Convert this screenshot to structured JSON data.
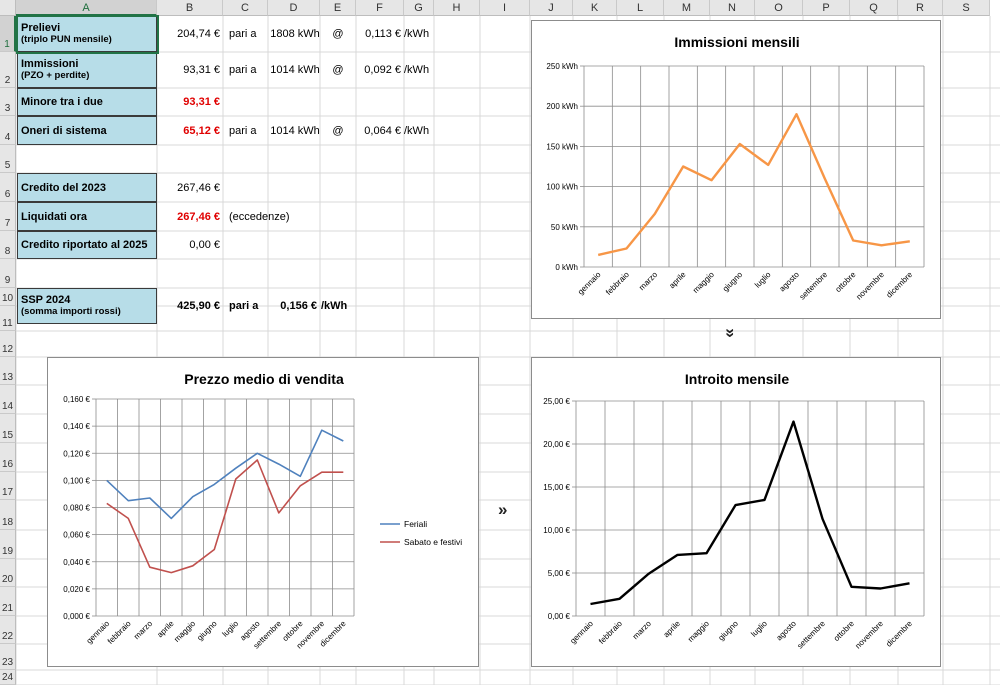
{
  "sheet": {
    "columns": [
      "A",
      "B",
      "C",
      "D",
      "E",
      "F",
      "G",
      "H",
      "I",
      "J",
      "K",
      "L",
      "M",
      "N",
      "O",
      "P",
      "Q",
      "R",
      "S"
    ],
    "rows": [
      "1",
      "2",
      "3",
      "4",
      "5",
      "6",
      "7",
      "8",
      "9",
      "10",
      "11",
      "12",
      "13",
      "14",
      "15",
      "16",
      "17",
      "18",
      "19",
      "20",
      "21",
      "22",
      "23",
      "24"
    ],
    "selected_cell": "A1"
  },
  "cells": {
    "prelievi": {
      "label": "Prelievi",
      "sub": "(triplo PUN mensile)",
      "amount": "204,74 €",
      "pari": "pari a",
      "kwh": "1808 kWh",
      "at": "@",
      "rate": "0,113 €",
      "unit": "/kWh"
    },
    "immissioni": {
      "label": "Immissioni",
      "sub": "(PZO + perdite)",
      "amount": "93,31 €",
      "pari": "pari a",
      "kwh": "1014 kWh",
      "at": "@",
      "rate": "0,092 €",
      "unit": "/kWh"
    },
    "minore": {
      "label": "Minore tra i due",
      "amount": "93,31 €"
    },
    "oneri": {
      "label": "Oneri di sistema",
      "amount": "65,12 €",
      "pari": "pari a",
      "kwh": "1014 kWh",
      "at": "@",
      "rate": "0,064 €",
      "unit": "/kWh"
    },
    "credito2023": {
      "label": "Credito del 2023",
      "amount": "267,46 €"
    },
    "liquidati": {
      "label": "Liquidati ora",
      "amount": "267,46 €",
      "note": "(eccedenze)"
    },
    "riportato": {
      "label": "Credito riportato al 2025",
      "amount": "0,00 €"
    },
    "ssp": {
      "label": "SSP 2024",
      "sub": "(somma importi rossi)",
      "amount": "425,90 €",
      "pari": "pari a",
      "rate": "0,156 €",
      "unit": "/kWh"
    }
  },
  "arrows": {
    "right": "»",
    "down": "»"
  },
  "colors": {
    "orange": "#f79646",
    "blue": "#4f81bd",
    "red": "#c0504d",
    "black": "#000000",
    "label_bg": "#b7dde8",
    "excel_green": "#217346"
  },
  "chart_data": [
    {
      "id": "immissioni-mensili",
      "type": "line",
      "title": "Immissioni mensili",
      "categories": [
        "gennaio",
        "febbraio",
        "marzo",
        "aprile",
        "maggio",
        "giugno",
        "luglio",
        "agosto",
        "settembre",
        "ottobre",
        "novembre",
        "dicembre"
      ],
      "series": [
        {
          "values": [
            15,
            23,
            66,
            125,
            108,
            153,
            127,
            190,
            110,
            33,
            27,
            32
          ],
          "color": "#f79646"
        }
      ],
      "ylim": [
        0,
        250
      ],
      "yticks": [
        "0 kWh",
        "50 kWh",
        "100 kWh",
        "150 kWh",
        "200 kWh",
        "250 kWh"
      ],
      "grid": true
    },
    {
      "id": "prezzo-medio",
      "type": "line",
      "title": "Prezzo medio di vendita",
      "categories": [
        "gennaio",
        "febbraio",
        "marzo",
        "aprile",
        "maggio",
        "giugno",
        "luglio",
        "agosto",
        "settembre",
        "ottobre",
        "novembre",
        "dicembre"
      ],
      "series": [
        {
          "name": "Feriali",
          "values": [
            0.1,
            0.085,
            0.087,
            0.072,
            0.088,
            0.097,
            0.109,
            0.12,
            0.112,
            0.103,
            0.137,
            0.129
          ],
          "color": "#4f81bd"
        },
        {
          "name": "Sabato e festivi",
          "values": [
            0.083,
            0.072,
            0.036,
            0.032,
            0.037,
            0.049,
            0.101,
            0.115,
            0.076,
            0.096,
            0.106,
            0.106
          ],
          "color": "#c0504d"
        }
      ],
      "ylim": [
        0,
        0.16
      ],
      "yticks": [
        "0,000 €",
        "0,020 €",
        "0,040 €",
        "0,060 €",
        "0,080 €",
        "0,100 €",
        "0,120 €",
        "0,140 €",
        "0,160 €"
      ],
      "grid": true,
      "legend": "right"
    },
    {
      "id": "introito-mensile",
      "type": "line",
      "title": "Introito mensile",
      "categories": [
        "gennaio",
        "febbraio",
        "marzo",
        "aprile",
        "maggio",
        "giugno",
        "luglio",
        "agosto",
        "settembre",
        "ottobre",
        "novembre",
        "dicembre"
      ],
      "series": [
        {
          "values": [
            1.4,
            2.0,
            4.9,
            7.1,
            7.3,
            12.9,
            13.5,
            22.6,
            11.3,
            3.4,
            3.2,
            3.8
          ],
          "color": "#000000"
        }
      ],
      "ylim": [
        0,
        25
      ],
      "yticks": [
        "0,00 €",
        "5,00 €",
        "10,00 €",
        "15,00 €",
        "20,00 €",
        "25,00 €"
      ],
      "grid": true
    }
  ]
}
